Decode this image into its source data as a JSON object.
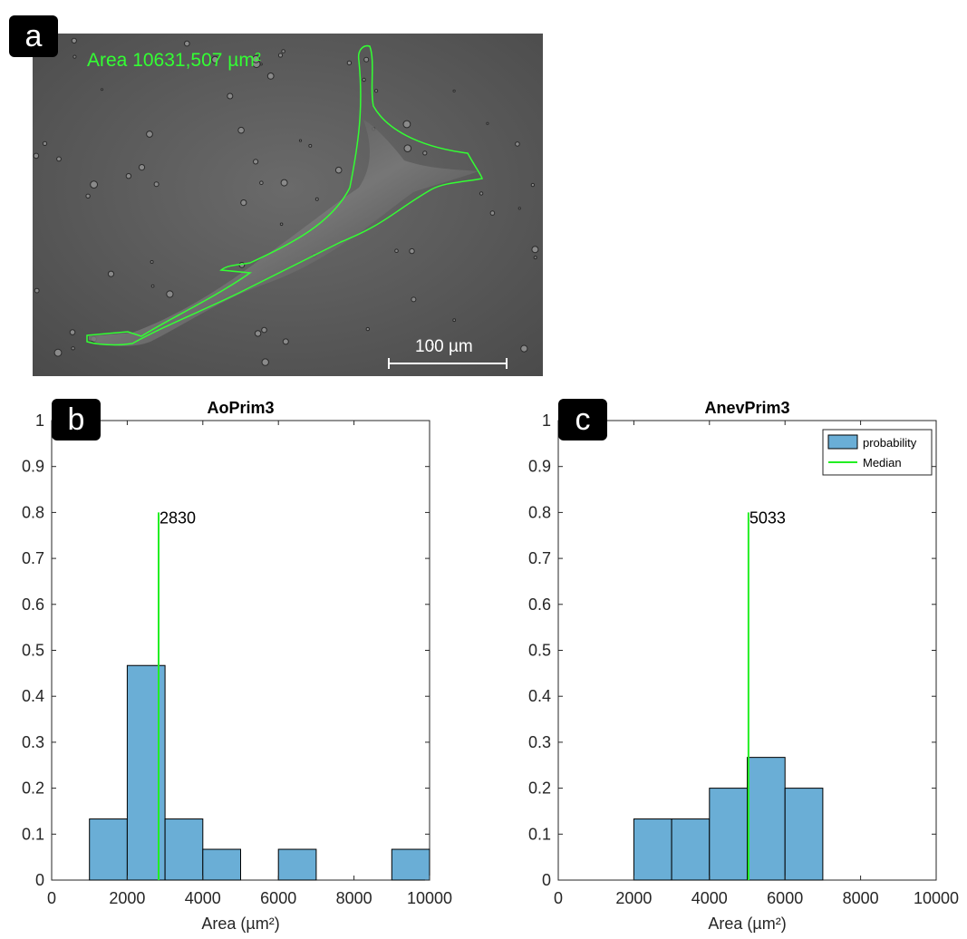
{
  "panels": {
    "a": {
      "letter": "a",
      "area_label": "Area 10631,507 µm²",
      "scale_bar_label": "100 µm",
      "outline_color": "#33ff33"
    },
    "b": {
      "letter": "b"
    },
    "c": {
      "letter": "c"
    }
  },
  "chart_data": [
    {
      "type": "bar",
      "title": "AoPrim3",
      "xlabel": "Area (µm²)",
      "ylabel": "",
      "xlim": [
        0,
        10000
      ],
      "ylim": [
        0,
        1
      ],
      "xticks": [
        0,
        2000,
        4000,
        6000,
        8000,
        10000
      ],
      "yticks": [
        0,
        0.1,
        0.2,
        0.3,
        0.4,
        0.5,
        0.6,
        0.7,
        0.8,
        0.9,
        1
      ],
      "bin_edges": [
        1000,
        2000,
        3000,
        4000,
        5000,
        6000,
        7000,
        8000,
        9000,
        10000
      ],
      "values": [
        0.133,
        0.467,
        0.133,
        0.067,
        0,
        0.067,
        0,
        0,
        0.067
      ],
      "median": 2830,
      "median_label": "2830",
      "median_line_top": 0.8,
      "bar_color": "#6aaed6",
      "median_color": "#22ee22",
      "legend": null
    },
    {
      "type": "bar",
      "title": "AnevPrim3",
      "xlabel": "Area (µm²)",
      "ylabel": "",
      "xlim": [
        0,
        10000
      ],
      "ylim": [
        0,
        1
      ],
      "xticks": [
        0,
        2000,
        4000,
        6000,
        8000,
        10000
      ],
      "yticks": [
        0,
        0.1,
        0.2,
        0.3,
        0.4,
        0.5,
        0.6,
        0.7,
        0.8,
        0.9,
        1
      ],
      "bin_edges": [
        2000,
        3000,
        4000,
        5000,
        6000,
        7000
      ],
      "values": [
        0.133,
        0.133,
        0.2,
        0.267,
        0.2
      ],
      "median": 5033,
      "median_label": "5033",
      "median_line_top": 0.8,
      "bar_color": "#6aaed6",
      "median_color": "#22ee22",
      "legend": {
        "placement": "top-right",
        "entries": [
          "probability",
          "Median"
        ]
      }
    }
  ]
}
